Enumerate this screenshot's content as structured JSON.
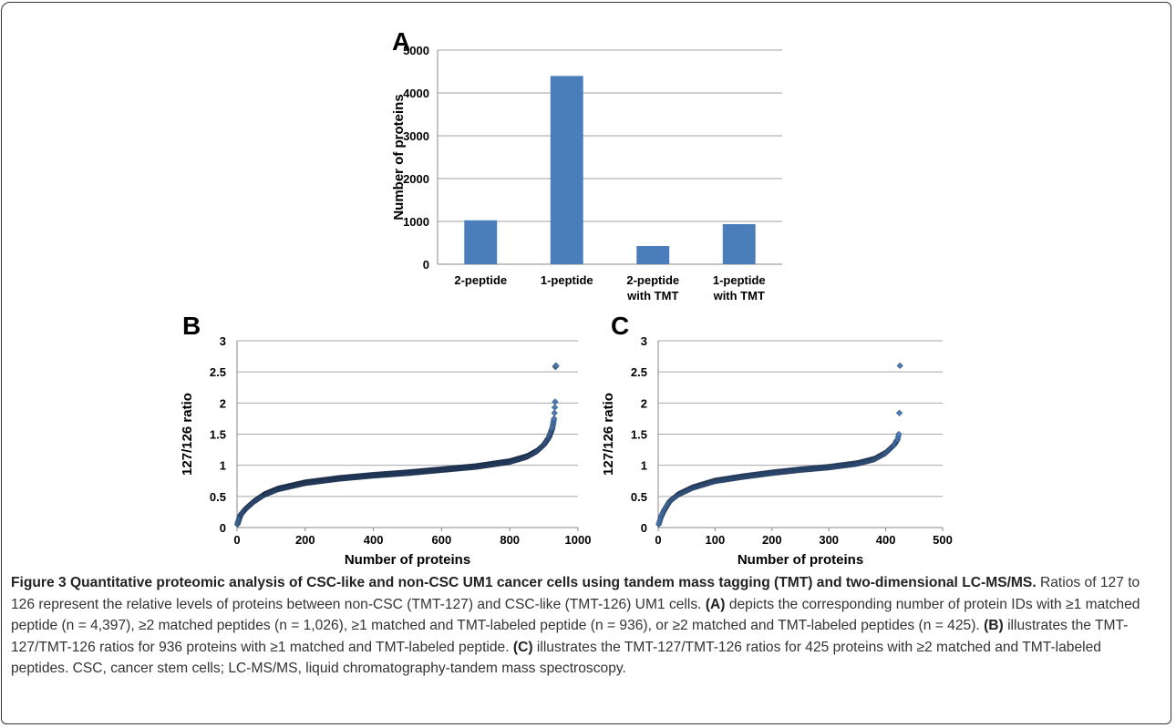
{
  "panels": {
    "A": {
      "letter": "A",
      "chart_data": {
        "type": "bar",
        "categories": [
          "2-peptide",
          "1-peptide",
          "2-peptide with TMT",
          "1-peptide with TMT"
        ],
        "category_lines": [
          [
            "2-peptide"
          ],
          [
            "1-peptide"
          ],
          [
            "2-peptide",
            "with TMT"
          ],
          [
            "1-peptide",
            "with TMT"
          ]
        ],
        "values": [
          1026,
          4397,
          425,
          936
        ],
        "ylabel": "Number of proteins",
        "xlabel": "",
        "ylim": [
          0,
          5000
        ],
        "yticks": [
          0,
          1000,
          2000,
          3000,
          4000,
          5000
        ],
        "grid": true,
        "color": "#4a7ebb"
      }
    },
    "B": {
      "letter": "B",
      "chart_data": {
        "type": "scatter",
        "n": 936,
        "xlabel": "Number of proteins",
        "ylabel": "127/126 ratio",
        "xlim": [
          0,
          1000
        ],
        "ylim": [
          0,
          3
        ],
        "xticks": [
          0,
          200,
          400,
          600,
          800,
          1000
        ],
        "yticks": [
          "0",
          "0.5",
          "1",
          "1.5",
          "2",
          "2.5",
          "3"
        ],
        "grid": true,
        "color": "#4a7ebb",
        "curve_points": [
          [
            1,
            0.05
          ],
          [
            10,
            0.2
          ],
          [
            25,
            0.3
          ],
          [
            50,
            0.42
          ],
          [
            80,
            0.53
          ],
          [
            120,
            0.62
          ],
          [
            200,
            0.72
          ],
          [
            300,
            0.79
          ],
          [
            400,
            0.84
          ],
          [
            500,
            0.88
          ],
          [
            600,
            0.93
          ],
          [
            700,
            0.98
          ],
          [
            800,
            1.06
          ],
          [
            850,
            1.14
          ],
          [
            880,
            1.23
          ],
          [
            900,
            1.33
          ],
          [
            915,
            1.45
          ],
          [
            925,
            1.6
          ],
          [
            930,
            1.75
          ],
          [
            933,
            2.02
          ],
          [
            934,
            2.58
          ],
          [
            935,
            2.6
          ],
          [
            936,
            2.6
          ]
        ]
      }
    },
    "C": {
      "letter": "C",
      "chart_data": {
        "type": "scatter",
        "n": 425,
        "xlabel": "Number of proteins",
        "ylabel": "127/126 ratio",
        "xlim": [
          0,
          500
        ],
        "ylim": [
          0,
          3
        ],
        "xticks": [
          0,
          100,
          200,
          300,
          400,
          500
        ],
        "yticks": [
          "0",
          "0.5",
          "1",
          "1.5",
          "2",
          "2.5",
          "3"
        ],
        "grid": true,
        "color": "#4a7ebb",
        "curve_points": [
          [
            1,
            0.05
          ],
          [
            5,
            0.17
          ],
          [
            10,
            0.27
          ],
          [
            20,
            0.42
          ],
          [
            35,
            0.53
          ],
          [
            60,
            0.64
          ],
          [
            100,
            0.75
          ],
          [
            150,
            0.82
          ],
          [
            200,
            0.88
          ],
          [
            250,
            0.93
          ],
          [
            300,
            0.97
          ],
          [
            350,
            1.03
          ],
          [
            380,
            1.1
          ],
          [
            400,
            1.2
          ],
          [
            415,
            1.33
          ],
          [
            421,
            1.42
          ],
          [
            423,
            1.5
          ],
          [
            424,
            1.84
          ],
          [
            425,
            2.6
          ]
        ]
      }
    }
  },
  "caption": {
    "lead": "Figure 3 Quantitative proteomic analysis of CSC-like and non-CSC UM1 cancer cells using tandem mass tagging (TMT) and two-dimensional LC-MS/MS.",
    "s1": "Ratios of 127 to 126 represent the relative levels of proteins between non-CSC (TMT-127) and CSC-like (TMT-126) UM1 cells.",
    "label_a": "(A)",
    "s2": "depicts the corresponding number of protein IDs with ≥1 matched peptide (n = 4,397), ≥2 matched peptides (n = 1,026), ≥1 matched and TMT-labeled peptide (n = 936), or ≥2 matched and TMT-labeled peptides (n = 425).",
    "label_b": "(B)",
    "s3": "illustrates the TMT-127/TMT-126 ratios for 936 proteins with ≥1 matched and TMT-labeled peptide.",
    "label_c": "(C)",
    "s4": "illustrates the TMT-127/TMT-126 ratios for 425 proteins with ≥2 matched and TMT-labeled peptides. CSC, cancer stem cells; LC-MS/MS, liquid chromatography-tandem mass spectroscopy."
  }
}
